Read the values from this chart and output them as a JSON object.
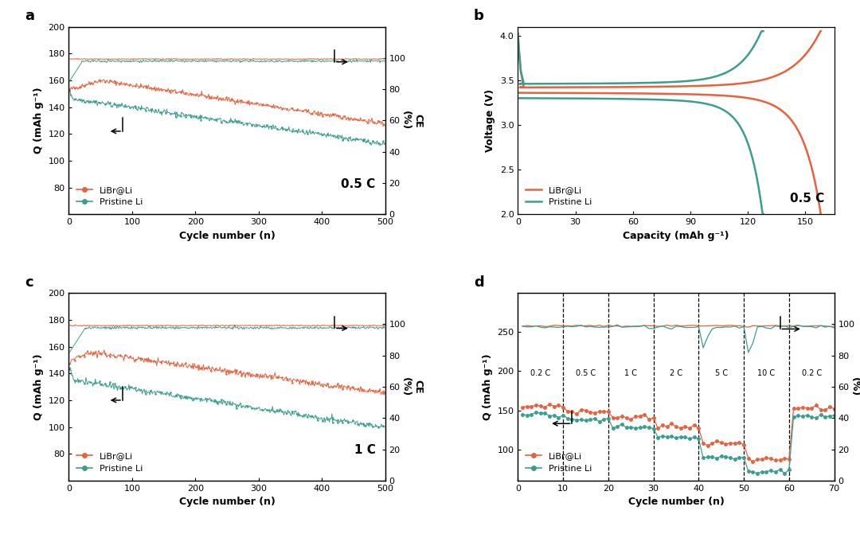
{
  "orange_color": "#E8613C",
  "teal_color": "#3A9E8F",
  "panel_labels": [
    "a",
    "b",
    "c",
    "d"
  ],
  "label_libr": "LiBr@Li",
  "label_pristine": "Pristine Li",
  "rate_05c": "0.5 C",
  "rate_1c": "1 C",
  "xlabel_cycle": "Cycle number (n)",
  "xlabel_capacity": "Capacity (mAh g⁻¹)",
  "ylabel_q": "Q (mAh g⁻¹)",
  "ylabel_voltage": "Voltage (V)",
  "ylabel_ce": "CE\n(%)"
}
